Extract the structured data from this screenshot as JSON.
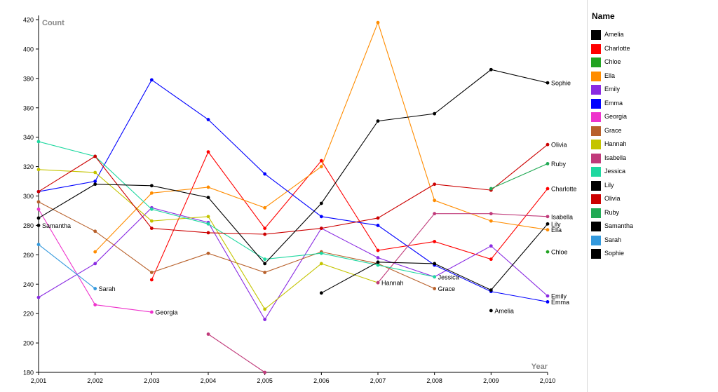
{
  "chart_data": {
    "type": "line",
    "title": "",
    "xlabel": "Year",
    "ylabel": "Count",
    "x": [
      2001,
      2002,
      2003,
      2004,
      2005,
      2006,
      2007,
      2008,
      2009,
      2010
    ],
    "x_tick_labels": [
      "2,001",
      "2,002",
      "2,003",
      "2,004",
      "2,005",
      "2,006",
      "2,007",
      "2,008",
      "2,009",
      "2,010"
    ],
    "ylim": [
      180,
      420
    ],
    "y_ticks": [
      180,
      200,
      220,
      240,
      260,
      280,
      300,
      320,
      340,
      360,
      380,
      400,
      420
    ],
    "grid": false,
    "legend_title": "Name",
    "legend_position": "right",
    "series": [
      {
        "name": "Amelia",
        "color": "#000000",
        "values": [
          null,
          null,
          null,
          null,
          null,
          null,
          null,
          null,
          222,
          null
        ]
      },
      {
        "name": "Charlotte",
        "color": "#ff0000",
        "values": [
          null,
          null,
          243,
          330,
          278,
          324,
          263,
          269,
          257,
          305
        ]
      },
      {
        "name": "Chloe",
        "color": "#22a322",
        "values": [
          null,
          null,
          null,
          null,
          null,
          null,
          null,
          null,
          null,
          262
        ]
      },
      {
        "name": "Ella",
        "color": "#ff8c00",
        "values": [
          null,
          262,
          302,
          306,
          292,
          320,
          418,
          297,
          283,
          277
        ]
      },
      {
        "name": "Emily",
        "color": "#8a2be2",
        "values": [
          231,
          254,
          292,
          282,
          216,
          278,
          258,
          245,
          266,
          232
        ]
      },
      {
        "name": "Emma",
        "color": "#0000ff",
        "values": [
          303,
          310,
          379,
          352,
          315,
          286,
          280,
          253,
          235,
          228
        ]
      },
      {
        "name": "Georgia",
        "color": "#ee33cc",
        "values": [
          291,
          226,
          221,
          null,
          null,
          null,
          null,
          null,
          null,
          null
        ]
      },
      {
        "name": "Grace",
        "color": "#b8602a",
        "values": [
          296,
          276,
          248,
          261,
          248,
          262,
          254,
          237,
          null,
          null
        ]
      },
      {
        "name": "Hannah",
        "color": "#c4c400",
        "values": [
          318,
          316,
          283,
          286,
          223,
          254,
          241,
          null,
          null,
          null
        ]
      },
      {
        "name": "Isabella",
        "color": "#c03a7a",
        "values": [
          null,
          null,
          null,
          206,
          180,
          null,
          241,
          288,
          288,
          286
        ]
      },
      {
        "name": "Jessica",
        "color": "#1fd8a0",
        "values": [
          337,
          327,
          291,
          281,
          257,
          261,
          253,
          245,
          null,
          null
        ]
      },
      {
        "name": "Lily",
        "color": "#000000",
        "values": [
          null,
          null,
          null,
          null,
          null,
          234,
          255,
          254,
          236,
          281
        ]
      },
      {
        "name": "Olivia",
        "color": "#cc0000",
        "values": [
          303,
          327,
          278,
          275,
          274,
          278,
          285,
          308,
          304,
          335
        ]
      },
      {
        "name": "Ruby",
        "color": "#22aa55",
        "values": [
          null,
          null,
          null,
          null,
          null,
          null,
          null,
          null,
          305,
          322
        ]
      },
      {
        "name": "Samantha",
        "color": "#000000",
        "values": [
          280,
          null,
          null,
          null,
          null,
          null,
          null,
          null,
          null,
          null
        ]
      },
      {
        "name": "Sarah",
        "color": "#3399dd",
        "values": [
          267,
          237,
          null,
          null,
          null,
          null,
          null,
          null,
          null,
          null
        ]
      },
      {
        "name": "Sophie",
        "color": "#000000",
        "values": [
          285,
          308,
          307,
          299,
          254,
          295,
          351,
          356,
          386,
          377
        ]
      }
    ],
    "end_labels": [
      {
        "series": "Samantha",
        "text": "Samantha",
        "x": 2001
      },
      {
        "series": "Sarah",
        "text": "Sarah",
        "x": 2002
      },
      {
        "series": "Georgia",
        "text": "Georgia",
        "x": 2003
      },
      {
        "series": "Hannah",
        "text": "Hannah",
        "x": 2007
      },
      {
        "series": "Jessica",
        "text": "Jessica",
        "x": 2008
      },
      {
        "series": "Grace",
        "text": "Grace",
        "x": 2008
      },
      {
        "series": "Amelia",
        "text": "Amelia",
        "x": 2009
      },
      {
        "series": "Sophie",
        "text": "Sophie",
        "x": 2010
      },
      {
        "series": "Olivia",
        "text": "Olivia",
        "x": 2010
      },
      {
        "series": "Ruby",
        "text": "Ruby",
        "x": 2010
      },
      {
        "series": "Charlotte",
        "text": "Charlotte",
        "x": 2010
      },
      {
        "series": "Isabella",
        "text": "Isabella",
        "x": 2010
      },
      {
        "series": "Lily",
        "text": "Lily",
        "x": 2010
      },
      {
        "series": "Ella",
        "text": "Ella",
        "x": 2010
      },
      {
        "series": "Chloe",
        "text": "Chloe",
        "x": 2010
      },
      {
        "series": "Emily",
        "text": "Emily",
        "x": 2010
      },
      {
        "series": "Emma",
        "text": "Emma",
        "x": 2010
      }
    ]
  }
}
